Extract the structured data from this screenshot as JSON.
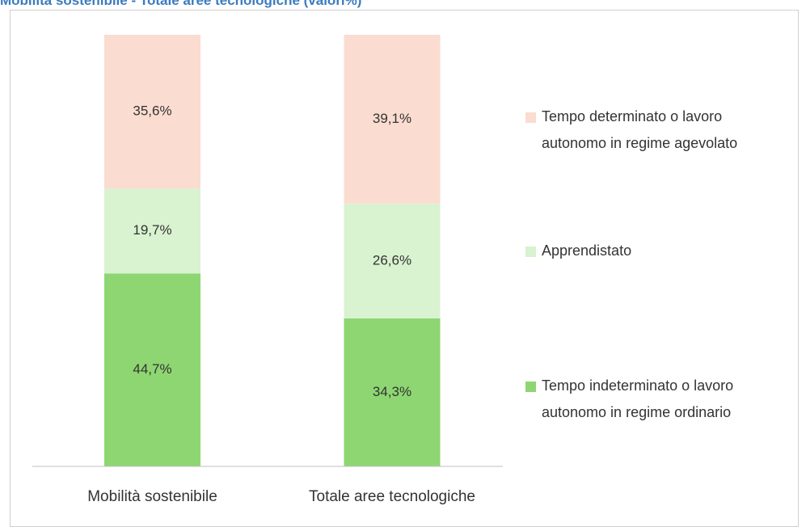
{
  "chart_data": {
    "type": "stacked_bar",
    "title": "Mobilità sostenibile - Totale aree tecnologiche (valori%)",
    "categories": [
      "Mobilità sostenibile",
      "Totale aree tecnologiche"
    ],
    "ylim": [
      0,
      100
    ],
    "series": [
      {
        "name": "Tempo indeterminato o lavoro autonomo in regime ordinario",
        "color": "#8ed672",
        "values": [
          44.7,
          34.3
        ],
        "value_labels": [
          "44,7%",
          "34,3%"
        ]
      },
      {
        "name": "Apprendistato",
        "color": "#d9f2d0",
        "values": [
          19.7,
          26.6
        ],
        "value_labels": [
          "19,7%",
          "26,6%"
        ]
      },
      {
        "name": "Tempo determinato o lavoro autonomo in regime agevolato",
        "color": "#fbdcd0",
        "values": [
          35.6,
          39.1
        ],
        "value_labels": [
          "35,6%",
          "39,1%"
        ]
      }
    ]
  }
}
